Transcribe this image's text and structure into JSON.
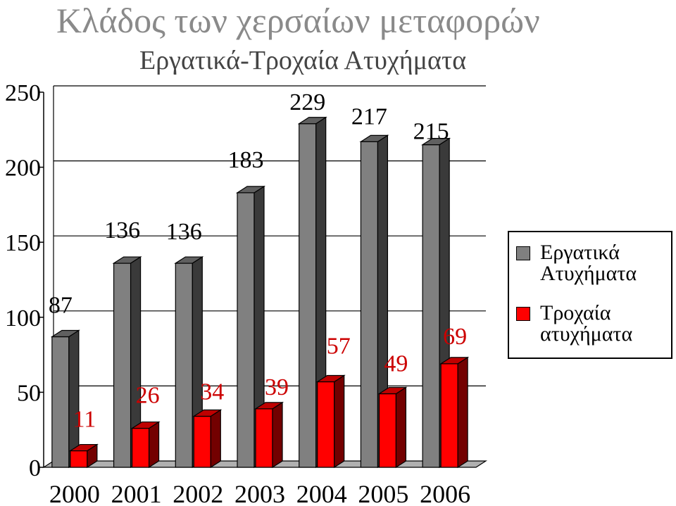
{
  "chart_data": {
    "type": "bar",
    "title": "Κλάδος των χερσαίων μεταφορών",
    "subtitle": "Εργατικά-Τροχαία Ατυχήματα",
    "categories": [
      "2000",
      "2001",
      "2002",
      "2003",
      "2004",
      "2005",
      "2006"
    ],
    "series": [
      {
        "name": "Εργατικά Ατυχήματα",
        "values": [
          87,
          136,
          136,
          183,
          229,
          217,
          215
        ],
        "color": "#808080",
        "label_color": "#000000"
      },
      {
        "name": "Τροχαία ατυχήματα",
        "values": [
          11,
          26,
          34,
          39,
          57,
          49,
          69
        ],
        "color": "#ff0000",
        "label_color": "#cc0000"
      }
    ],
    "ylim": [
      0,
      250
    ],
    "yticks": [
      "0",
      "50",
      "100",
      "150",
      "200",
      "250"
    ],
    "grid": true,
    "legend_position": "right",
    "style": "3d-column"
  }
}
